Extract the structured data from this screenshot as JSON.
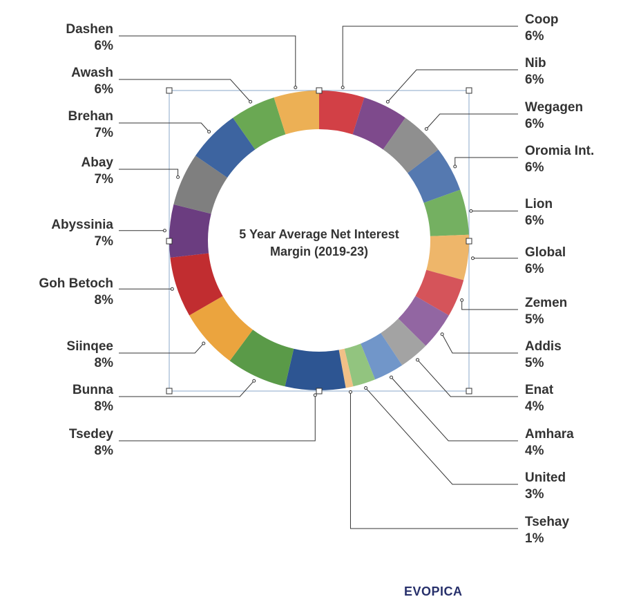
{
  "chart_data": {
    "type": "pie",
    "style": "donut",
    "center_label": [
      "5 Year Average Net Interest",
      "Margin (2019-23)"
    ],
    "slices": [
      {
        "name": "Coop",
        "value": 6,
        "label": "6%",
        "color": "#d24046"
      },
      {
        "name": "Nib",
        "value": 6,
        "label": "6%",
        "color": "#7e4a8c"
      },
      {
        "name": "Wegagen",
        "value": 6,
        "label": "6%",
        "color": "#8f8f8f"
      },
      {
        "name": "Oromia Int.",
        "value": 6,
        "label": "6%",
        "color": "#5579b0"
      },
      {
        "name": "Lion",
        "value": 6,
        "label": "6%",
        "color": "#74b061"
      },
      {
        "name": "Global",
        "value": 6,
        "label": "6%",
        "color": "#eeb66a"
      },
      {
        "name": "Zemen",
        "value": 5,
        "label": "5%",
        "color": "#d5545a"
      },
      {
        "name": "Addis",
        "value": 5,
        "label": "5%",
        "color": "#9266a2"
      },
      {
        "name": "Enat",
        "value": 4,
        "label": "4%",
        "color": "#a3a3a3"
      },
      {
        "name": "Amhara",
        "value": 4,
        "label": "4%",
        "color": "#7196c9"
      },
      {
        "name": "United",
        "value": 3,
        "label": "3%",
        "color": "#92c47f"
      },
      {
        "name": "Tsehay",
        "value": 1,
        "label": "1%",
        "color": "#f1c087"
      },
      {
        "name": "Tsedey",
        "value": 8,
        "label": "8%",
        "color": "#2d5592"
      },
      {
        "name": "Bunna",
        "value": 8,
        "label": "8%",
        "color": "#5a9a48"
      },
      {
        "name": "Siinqee",
        "value": 8,
        "label": "8%",
        "color": "#eba43e"
      },
      {
        "name": "Goh Betoch",
        "value": 8,
        "label": "8%",
        "color": "#c12d30"
      },
      {
        "name": "Abyssinia",
        "value": 7,
        "label": "7%",
        "color": "#6b3d80"
      },
      {
        "name": "Abay",
        "value": 7,
        "label": "7%",
        "color": "#7f7f7f"
      },
      {
        "name": "Brehan",
        "value": 7,
        "label": "7%",
        "color": "#3d64a0"
      },
      {
        "name": "Awash",
        "value": 6,
        "label": "6%",
        "color": "#6aa853"
      },
      {
        "name": "Dashen",
        "value": 6,
        "label": "6%",
        "color": "#ecb055"
      }
    ]
  },
  "brand": "EVOPICA"
}
